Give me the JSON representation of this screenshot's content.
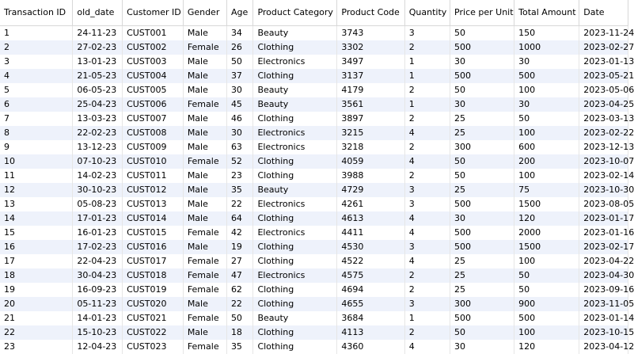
{
  "columns": [
    "Transaction ID",
    "old_date",
    "Customer ID",
    "Gender",
    "Age",
    "Product Category",
    "Product Code",
    "Quantity",
    "Price per Unit",
    "Total Amount",
    "Date"
  ],
  "rows": [
    [
      "1",
      "24-11-23",
      "CUST001",
      "Male",
      "34",
      "Beauty",
      "3743",
      "3",
      "50",
      "150",
      "2023-11-24"
    ],
    [
      "2",
      "27-02-23",
      "CUST002",
      "Female",
      "26",
      "Clothing",
      "3302",
      "2",
      "500",
      "1000",
      "2023-02-27"
    ],
    [
      "3",
      "13-01-23",
      "CUST003",
      "Male",
      "50",
      "Electronics",
      "3497",
      "1",
      "30",
      "30",
      "2023-01-13"
    ],
    [
      "4",
      "21-05-23",
      "CUST004",
      "Male",
      "37",
      "Clothing",
      "3137",
      "1",
      "500",
      "500",
      "2023-05-21"
    ],
    [
      "5",
      "06-05-23",
      "CUST005",
      "Male",
      "30",
      "Beauty",
      "4179",
      "2",
      "50",
      "100",
      "2023-05-06"
    ],
    [
      "6",
      "25-04-23",
      "CUST006",
      "Female",
      "45",
      "Beauty",
      "3561",
      "1",
      "30",
      "30",
      "2023-04-25"
    ],
    [
      "7",
      "13-03-23",
      "CUST007",
      "Male",
      "46",
      "Clothing",
      "3897",
      "2",
      "25",
      "50",
      "2023-03-13"
    ],
    [
      "8",
      "22-02-23",
      "CUST008",
      "Male",
      "30",
      "Electronics",
      "3215",
      "4",
      "25",
      "100",
      "2023-02-22"
    ],
    [
      "9",
      "13-12-23",
      "CUST009",
      "Male",
      "63",
      "Electronics",
      "3218",
      "2",
      "300",
      "600",
      "2023-12-13"
    ],
    [
      "10",
      "07-10-23",
      "CUST010",
      "Female",
      "52",
      "Clothing",
      "4059",
      "4",
      "50",
      "200",
      "2023-10-07"
    ],
    [
      "11",
      "14-02-23",
      "CUST011",
      "Male",
      "23",
      "Clothing",
      "3988",
      "2",
      "50",
      "100",
      "2023-02-14"
    ],
    [
      "12",
      "30-10-23",
      "CUST012",
      "Male",
      "35",
      "Beauty",
      "4729",
      "3",
      "25",
      "75",
      "2023-10-30"
    ],
    [
      "13",
      "05-08-23",
      "CUST013",
      "Male",
      "22",
      "Electronics",
      "4261",
      "3",
      "500",
      "1500",
      "2023-08-05"
    ],
    [
      "14",
      "17-01-23",
      "CUST014",
      "Male",
      "64",
      "Clothing",
      "4613",
      "4",
      "30",
      "120",
      "2023-01-17"
    ],
    [
      "15",
      "16-01-23",
      "CUST015",
      "Female",
      "42",
      "Electronics",
      "4411",
      "4",
      "500",
      "2000",
      "2023-01-16"
    ],
    [
      "16",
      "17-02-23",
      "CUST016",
      "Male",
      "19",
      "Clothing",
      "4530",
      "3",
      "500",
      "1500",
      "2023-02-17"
    ],
    [
      "17",
      "22-04-23",
      "CUST017",
      "Female",
      "27",
      "Clothing",
      "4522",
      "4",
      "25",
      "100",
      "2023-04-22"
    ],
    [
      "18",
      "30-04-23",
      "CUST018",
      "Female",
      "47",
      "Electronics",
      "4575",
      "2",
      "25",
      "50",
      "2023-04-30"
    ],
    [
      "19",
      "16-09-23",
      "CUST019",
      "Female",
      "62",
      "Clothing",
      "4694",
      "2",
      "25",
      "50",
      "2023-09-16"
    ],
    [
      "20",
      "05-11-23",
      "CUST020",
      "Male",
      "22",
      "Clothing",
      "4655",
      "3",
      "300",
      "900",
      "2023-11-05"
    ],
    [
      "21",
      "14-01-23",
      "CUST021",
      "Female",
      "50",
      "Beauty",
      "3684",
      "1",
      "500",
      "500",
      "2023-01-14"
    ],
    [
      "22",
      "15-10-23",
      "CUST022",
      "Male",
      "18",
      "Clothing",
      "4113",
      "2",
      "50",
      "100",
      "2023-10-15"
    ],
    [
      "23",
      "12-04-23",
      "CUST023",
      "Female",
      "35",
      "Clothing",
      "4360",
      "4",
      "30",
      "120",
      "2023-04-12"
    ]
  ]
}
